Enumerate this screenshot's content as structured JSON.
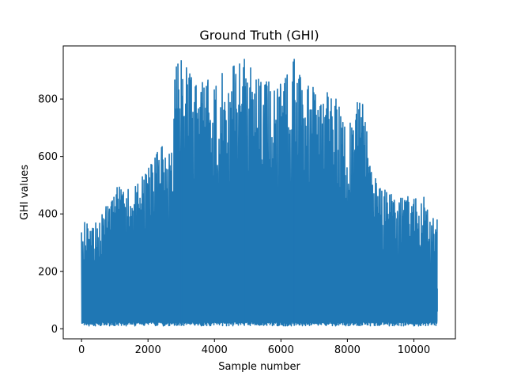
{
  "chart_data": {
    "type": "line",
    "title": "Ground Truth (GHI)",
    "xlabel": "Sample number",
    "ylabel": "GHI values",
    "xlim": [
      -550,
      11250
    ],
    "ylim": [
      -35,
      985
    ],
    "xticks": [
      0,
      2000,
      4000,
      6000,
      8000,
      10000
    ],
    "xtick_labels": [
      "0",
      "2000",
      "4000",
      "6000",
      "8000",
      "10000"
    ],
    "yticks": [
      0,
      200,
      400,
      600,
      800
    ],
    "ytick_labels": [
      "0",
      "200",
      "400",
      "600",
      "800"
    ],
    "grid": false,
    "legend": "none",
    "series": [
      {
        "color": "#1f77b4",
        "x_range": [
          0,
          10700
        ],
        "baseline": 10,
        "envelope_x": [
          0,
          250,
          550,
          1000,
          1500,
          2000,
          2400,
          2700,
          2800,
          3000,
          3300,
          3700,
          4100,
          4500,
          4900,
          5300,
          5700,
          6100,
          6400,
          6800,
          7300,
          7700,
          8000,
          8300,
          8500,
          8700,
          9000,
          9500,
          10000,
          10300,
          10500,
          10700
        ],
        "envelope_y": [
          375,
          385,
          390,
          495,
          500,
          565,
          650,
          650,
          920,
          935,
          890,
          880,
          880,
          930,
          940,
          880,
          870,
          880,
          940,
          860,
          830,
          800,
          700,
          790,
          795,
          560,
          500,
          460,
          460,
          460,
          390,
          390
        ],
        "peaks": [
          {
            "x": 3000,
            "y": 935
          },
          {
            "x": 4900,
            "y": 940
          },
          {
            "x": 6400,
            "y": 940
          }
        ]
      }
    ]
  }
}
